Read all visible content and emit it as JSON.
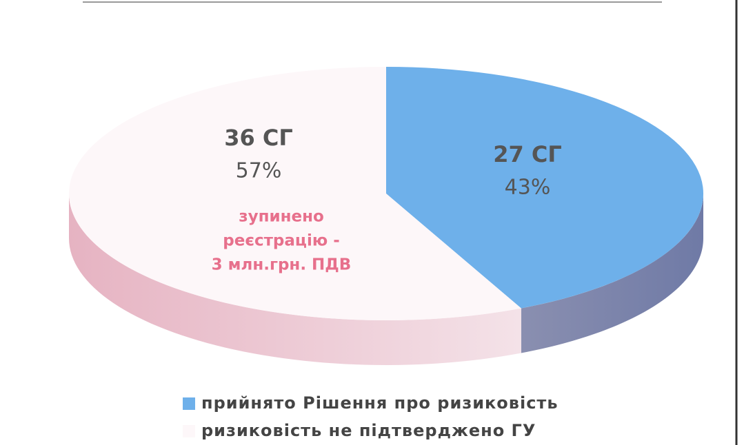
{
  "chart_data": {
    "type": "pie",
    "categories": [
      "прийнято Рішення про ризиковість",
      "ризиковість не підтверджено ГУ"
    ],
    "values": [
      43,
      57
    ],
    "value_labels": [
      "43%",
      "57%"
    ],
    "counts": [
      27,
      36
    ],
    "count_labels": [
      "27 СГ",
      "36 СГ"
    ],
    "colors": [
      "#6eb0ea",
      "#fdf7f9"
    ],
    "annotation": [
      "зупинено",
      "реєстрацію -",
      "3 млн.грн. ПДВ"
    ]
  }
}
